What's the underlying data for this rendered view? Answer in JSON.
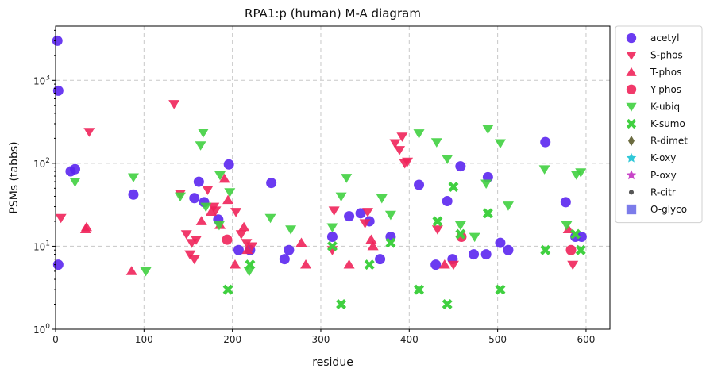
{
  "chart_data": {
    "type": "scatter",
    "title": "RPA1:p (human) M-A diagram",
    "xlabel": "residue",
    "ylabel": "PSMs (tabbs)",
    "xlim": [
      0,
      627
    ],
    "ylim": [
      1,
      4500
    ],
    "yscale": "log",
    "grid": true,
    "legend_position": "right-outside",
    "x_ticks": [
      0,
      100,
      200,
      300,
      400,
      500,
      600
    ],
    "y_ticks": [
      {
        "value": 1,
        "base": "10",
        "exp": "0"
      },
      {
        "value": 10,
        "base": "10",
        "exp": "1"
      },
      {
        "value": 100,
        "base": "10",
        "exp": "2"
      },
      {
        "value": 1000,
        "base": "10",
        "exp": "3"
      }
    ],
    "series": [
      {
        "name": "acetyl",
        "marker": "circle",
        "color": "#5b26f0",
        "points": [
          [
            2,
            3000
          ],
          [
            3,
            750
          ],
          [
            3,
            6
          ],
          [
            17,
            80
          ],
          [
            22,
            85
          ],
          [
            88,
            42
          ],
          [
            157,
            38
          ],
          [
            162,
            60
          ],
          [
            168,
            34
          ],
          [
            184,
            21
          ],
          [
            196,
            97
          ],
          [
            207,
            9
          ],
          [
            220,
            9
          ],
          [
            244,
            58
          ],
          [
            259,
            7
          ],
          [
            264,
            9
          ],
          [
            313,
            13
          ],
          [
            332,
            23
          ],
          [
            345,
            25
          ],
          [
            355,
            20
          ],
          [
            367,
            7
          ],
          [
            379,
            13
          ],
          [
            411,
            55
          ],
          [
            430,
            6
          ],
          [
            443,
            35
          ],
          [
            449,
            7
          ],
          [
            458,
            92
          ],
          [
            473,
            8
          ],
          [
            487,
            8
          ],
          [
            489,
            68
          ],
          [
            503,
            11
          ],
          [
            512,
            9
          ],
          [
            554,
            180
          ],
          [
            577,
            34
          ],
          [
            588,
            13
          ],
          [
            595,
            13
          ]
        ]
      },
      {
        "name": "S-phos",
        "marker": "triangle-down",
        "color": "#f0245a",
        "points": [
          [
            6,
            22
          ],
          [
            38,
            240
          ],
          [
            134,
            520
          ],
          [
            141,
            43
          ],
          [
            148,
            14
          ],
          [
            152,
            8
          ],
          [
            154,
            11
          ],
          [
            157,
            7
          ],
          [
            159,
            12
          ],
          [
            172,
            48
          ],
          [
            179,
            30
          ],
          [
            181,
            27
          ],
          [
            204,
            26
          ],
          [
            210,
            14
          ],
          [
            216,
            11
          ],
          [
            222,
            10
          ],
          [
            313,
            9
          ],
          [
            315,
            27
          ],
          [
            350,
            19
          ],
          [
            353,
            26
          ],
          [
            384,
            175
          ],
          [
            389,
            145
          ],
          [
            392,
            210
          ],
          [
            395,
            100
          ],
          [
            398,
            105
          ],
          [
            432,
            16
          ],
          [
            450,
            6
          ],
          [
            585,
            6
          ]
        ]
      },
      {
        "name": "T-phos",
        "marker": "triangle-up",
        "color": "#f0245a",
        "points": [
          [
            34,
            16
          ],
          [
            35,
            17
          ],
          [
            86,
            5
          ],
          [
            165,
            20
          ],
          [
            176,
            26
          ],
          [
            186,
            18
          ],
          [
            191,
            65
          ],
          [
            195,
            36
          ],
          [
            203,
            6
          ],
          [
            213,
            17
          ],
          [
            217,
            9
          ],
          [
            278,
            11
          ],
          [
            283,
            6
          ],
          [
            332,
            6
          ],
          [
            357,
            12
          ],
          [
            359,
            10
          ],
          [
            440,
            6
          ],
          [
            580,
            16
          ]
        ]
      },
      {
        "name": "Y-phos",
        "marker": "circle",
        "color": "#f0245a",
        "points": [
          [
            194,
            12
          ],
          [
            459,
            13
          ],
          [
            583,
            9
          ]
        ]
      },
      {
        "name": "K-ubiq",
        "marker": "triangle-down",
        "color": "#40d040",
        "points": [
          [
            22,
            60
          ],
          [
            88,
            68
          ],
          [
            102,
            5
          ],
          [
            141,
            40
          ],
          [
            164,
            165
          ],
          [
            167,
            235
          ],
          [
            170,
            30
          ],
          [
            185,
            18
          ],
          [
            186,
            72
          ],
          [
            197,
            45
          ],
          [
            219,
            5
          ],
          [
            243,
            22
          ],
          [
            266,
            16
          ],
          [
            313,
            17
          ],
          [
            323,
            40
          ],
          [
            329,
            67
          ],
          [
            369,
            38
          ],
          [
            379,
            24
          ],
          [
            411,
            230
          ],
          [
            431,
            180
          ],
          [
            443,
            113
          ],
          [
            458,
            18
          ],
          [
            474,
            13
          ],
          [
            487,
            57
          ],
          [
            489,
            260
          ],
          [
            503,
            175
          ],
          [
            512,
            31
          ],
          [
            553,
            85
          ],
          [
            578,
            18
          ],
          [
            589,
            73
          ],
          [
            594,
            78
          ]
        ]
      },
      {
        "name": "K-sumo",
        "marker": "x",
        "color": "#40d040",
        "points": [
          [
            195,
            3
          ],
          [
            220,
            6
          ],
          [
            313,
            10
          ],
          [
            323,
            2
          ],
          [
            355,
            6
          ],
          [
            379,
            11
          ],
          [
            411,
            3
          ],
          [
            432,
            20
          ],
          [
            443,
            2
          ],
          [
            450,
            52
          ],
          [
            458,
            14
          ],
          [
            489,
            25
          ],
          [
            503,
            3
          ],
          [
            554,
            9
          ],
          [
            588,
            14
          ],
          [
            594,
            9
          ]
        ]
      }
    ]
  },
  "legend": [
    {
      "label": "acetyl",
      "marker": "circle",
      "color": "#5b26f0"
    },
    {
      "label": "S-phos",
      "marker": "triangle-down",
      "color": "#f0245a"
    },
    {
      "label": "T-phos",
      "marker": "triangle-up",
      "color": "#f0245a"
    },
    {
      "label": "Y-phos",
      "marker": "circle",
      "color": "#f0245a"
    },
    {
      "label": "K-ubiq",
      "marker": "triangle-down",
      "color": "#40d040"
    },
    {
      "label": "K-sumo",
      "marker": "x",
      "color": "#40d040"
    },
    {
      "label": "R-dimet",
      "marker": "diamond",
      "color": "#6b6b40"
    },
    {
      "label": "K-oxy",
      "marker": "star",
      "color": "#30c8d8"
    },
    {
      "label": "P-oxy",
      "marker": "star",
      "color": "#c845c8"
    },
    {
      "label": "R-citr",
      "marker": "dot",
      "color": "#555555"
    },
    {
      "label": "O-glyco",
      "marker": "square",
      "color": "#6e6ee8"
    }
  ]
}
